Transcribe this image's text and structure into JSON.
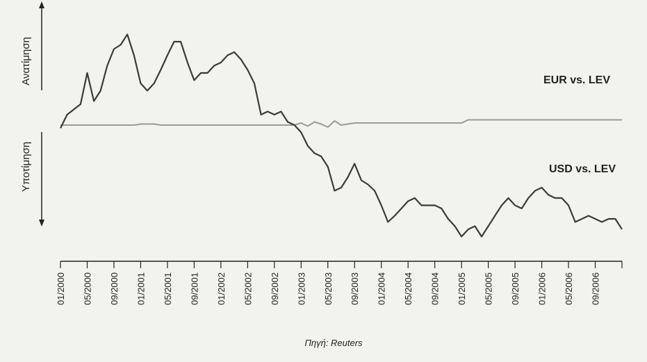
{
  "chart_data": {
    "type": "line",
    "ylabel_up": "Ανατίμηση",
    "ylabel_down": "Υποτίμηση",
    "source": "Πηγή: Reuters",
    "categories": [
      "01/2000",
      null,
      null,
      null,
      "05/2000",
      null,
      null,
      null,
      "09/2000",
      null,
      null,
      null,
      "01/2001",
      null,
      null,
      null,
      "05/2001",
      null,
      null,
      null,
      "09/2001",
      null,
      null,
      null,
      "01/2002",
      null,
      null,
      null,
      "05/2002",
      null,
      null,
      null,
      "09/2002",
      null,
      null,
      null,
      "01/2003",
      null,
      null,
      null,
      "05/2003",
      null,
      null,
      null,
      "09/2003",
      null,
      null,
      null,
      "01/2004",
      null,
      null,
      null,
      "05/2004",
      null,
      null,
      null,
      "09/2004",
      null,
      null,
      null,
      "01/2005",
      null,
      null,
      null,
      "05/2005",
      null,
      null,
      null,
      "09/2005",
      null,
      null,
      null,
      "01/2006",
      null,
      null,
      null,
      "05/2006",
      null,
      null,
      null,
      "09/2006",
      null,
      null,
      null,
      null
    ],
    "ylim": [
      -120,
      100
    ],
    "series": [
      {
        "name": "EUR vs. LEV",
        "color": "#9a9a9a",
        "values": [
          0,
          0,
          0,
          0,
          0,
          0,
          0,
          0,
          0,
          0,
          0,
          0,
          1,
          1,
          1,
          0,
          0,
          0,
          0,
          0,
          0,
          0,
          0,
          0,
          0,
          0,
          0,
          0,
          0,
          0,
          0,
          0,
          0,
          0,
          0,
          0,
          2,
          -1,
          3,
          1,
          -2,
          4,
          0,
          1,
          2,
          2,
          2,
          2,
          2,
          2,
          2,
          2,
          2,
          2,
          2,
          2,
          2,
          2,
          2,
          2,
          2,
          5,
          5,
          5,
          5,
          5,
          5,
          5,
          5,
          5,
          5,
          5,
          5,
          5,
          5,
          5,
          5,
          5,
          5,
          5,
          5,
          5,
          5,
          5,
          5
        ]
      },
      {
        "name": "USD vs. LEV",
        "color": "#3a3a3a",
        "values": [
          -3,
          10,
          15,
          20,
          50,
          23,
          33,
          57,
          73,
          77,
          87,
          67,
          40,
          33,
          40,
          53,
          67,
          80,
          80,
          60,
          43,
          50,
          50,
          57,
          60,
          67,
          70,
          63,
          53,
          40,
          10,
          13,
          10,
          13,
          3,
          0,
          -7,
          -20,
          -27,
          -30,
          -40,
          -63,
          -60,
          -50,
          -37,
          -53,
          -57,
          -63,
          -77,
          -93,
          -87,
          -80,
          -73,
          -70,
          -77,
          -77,
          -77,
          -80,
          -90,
          -97,
          -107,
          -100,
          -97,
          -107,
          -97,
          -87,
          -77,
          -70,
          -77,
          -80,
          -70,
          -63,
          -60,
          -67,
          -70,
          -70,
          -77,
          -93,
          -90,
          -87,
          -90,
          -93,
          -90,
          -90,
          -100
        ]
      }
    ]
  }
}
